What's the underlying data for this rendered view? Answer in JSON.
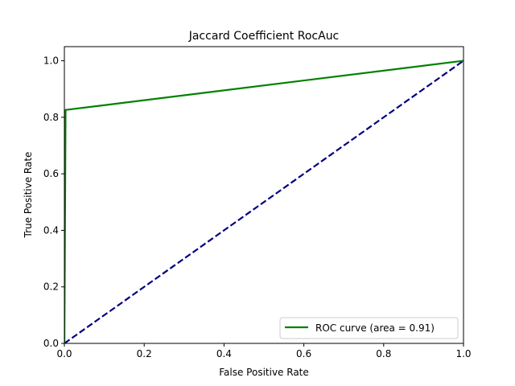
{
  "chart_data": {
    "type": "line",
    "title": "Jaccard Coefficient RocAuc",
    "xlabel": "False Positive Rate",
    "ylabel": "True Positive Rate",
    "xlim": [
      0.0,
      1.0
    ],
    "ylim": [
      0.0,
      1.05
    ],
    "xticks": [
      "0.0",
      "0.2",
      "0.4",
      "0.6",
      "0.8",
      "1.0"
    ],
    "yticks": [
      "0.0",
      "0.2",
      "0.4",
      "0.6",
      "0.8",
      "1.0"
    ],
    "grid": false,
    "legend_position": "lower-right",
    "series": [
      {
        "name": "ROC curve (area = 0.91)",
        "color": "#008000",
        "style": "solid",
        "x": [
          0.0,
          0.0,
          0.003,
          1.0
        ],
        "y": [
          0.0,
          0.0,
          0.826,
          1.0
        ]
      },
      {
        "name": "",
        "color": "#000080",
        "style": "dashed",
        "x": [
          0.0,
          1.0
        ],
        "y": [
          0.0,
          1.0
        ]
      }
    ]
  }
}
